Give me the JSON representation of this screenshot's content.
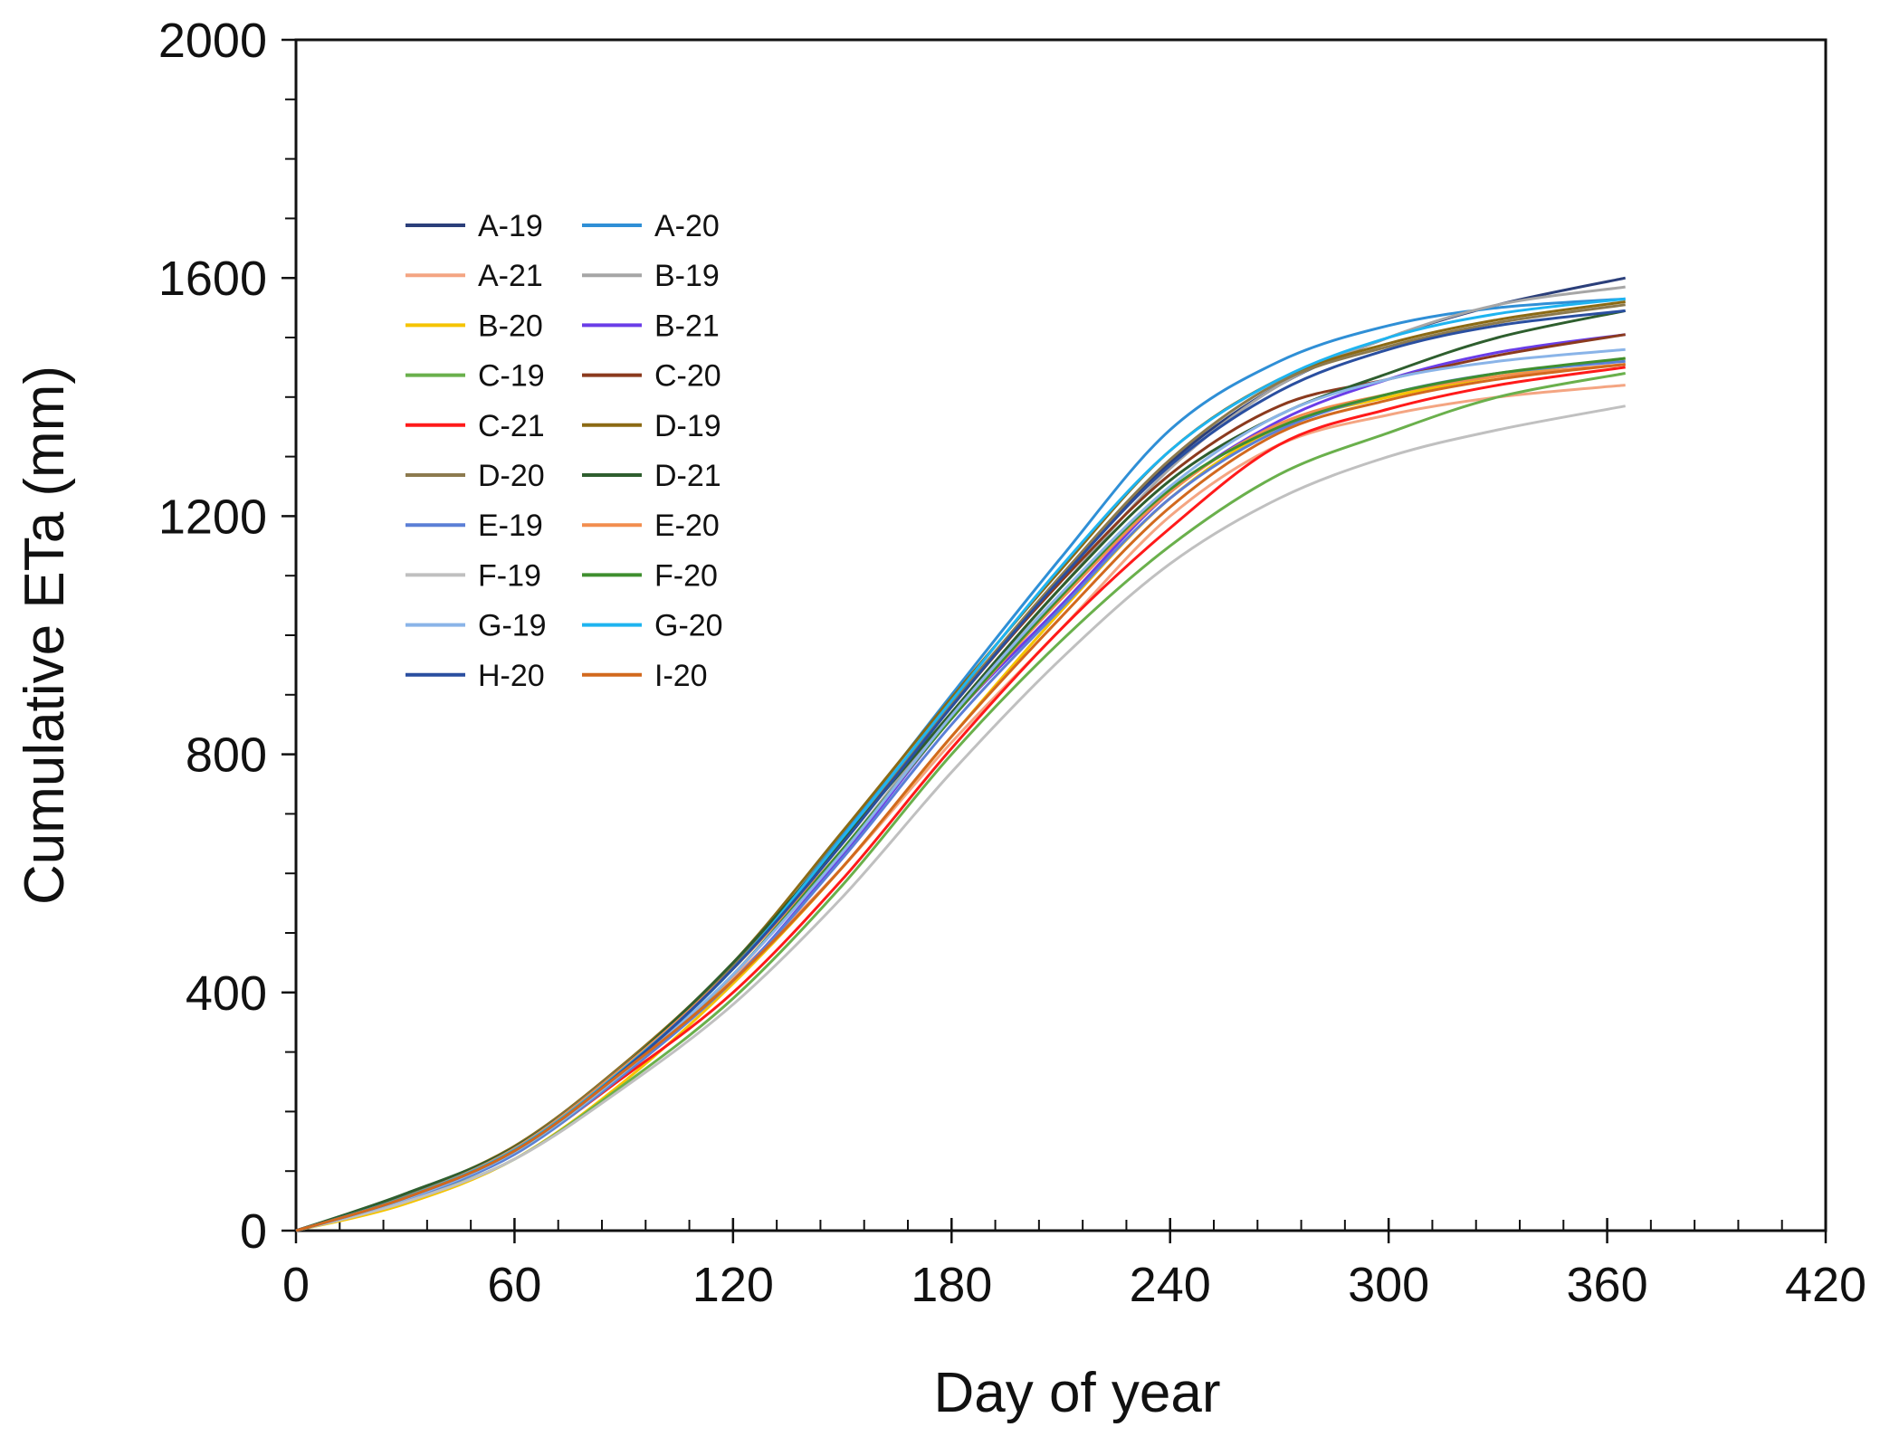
{
  "chart_data": {
    "type": "line",
    "title": "",
    "xlabel": "Day of year",
    "ylabel": "Cumulative ETa (mm)",
    "xlim": [
      0,
      420
    ],
    "ylim": [
      0,
      2000
    ],
    "xticks": [
      0,
      60,
      120,
      180,
      240,
      300,
      360,
      420
    ],
    "yticks": [
      0,
      400,
      800,
      1200,
      1600,
      2000
    ],
    "x_minor_step": 12,
    "y_minor_step": 100,
    "grid": false,
    "legend_position": "upper-left",
    "x": [
      0,
      30,
      60,
      90,
      120,
      150,
      180,
      210,
      240,
      270,
      300,
      330,
      365
    ],
    "series": [
      {
        "name": "A-19",
        "color": "#2b3f7a",
        "values": [
          0,
          60,
          140,
          275,
          440,
          655,
          880,
          1095,
          1290,
          1420,
          1500,
          1555,
          1600
        ]
      },
      {
        "name": "A-20",
        "color": "#2f8fd6",
        "values": [
          0,
          58,
          138,
          270,
          440,
          665,
          900,
          1130,
          1345,
          1460,
          1520,
          1550,
          1565
        ]
      },
      {
        "name": "A-21",
        "color": "#f4a582",
        "values": [
          0,
          55,
          135,
          268,
          425,
          610,
          820,
          1010,
          1200,
          1320,
          1370,
          1400,
          1420
        ]
      },
      {
        "name": "B-19",
        "color": "#a6a6a6",
        "values": [
          0,
          52,
          130,
          265,
          430,
          640,
          870,
          1080,
          1280,
          1420,
          1500,
          1555,
          1585
        ]
      },
      {
        "name": "B-20",
        "color": "#f5c400",
        "values": [
          0,
          45,
          120,
          250,
          415,
          610,
          830,
          1040,
          1230,
          1350,
          1400,
          1435,
          1465
        ]
      },
      {
        "name": "B-21",
        "color": "#6a3de8",
        "values": [
          0,
          55,
          132,
          266,
          420,
          630,
          860,
          1050,
          1240,
          1360,
          1430,
          1475,
          1505
        ]
      },
      {
        "name": "C-19",
        "color": "#6ab04c",
        "values": [
          0,
          50,
          120,
          245,
          390,
          580,
          800,
          990,
          1150,
          1270,
          1340,
          1400,
          1440
        ]
      },
      {
        "name": "C-20",
        "color": "#8b3a1e",
        "values": [
          0,
          56,
          136,
          272,
          440,
          650,
          880,
          1090,
          1270,
          1385,
          1430,
          1470,
          1505
        ]
      },
      {
        "name": "C-21",
        "color": "#ff1a1a",
        "values": [
          0,
          54,
          130,
          258,
          400,
          590,
          810,
          1010,
          1180,
          1320,
          1380,
          1420,
          1450
        ]
      },
      {
        "name": "D-19",
        "color": "#8b6a14",
        "values": [
          0,
          60,
          142,
          280,
          450,
          670,
          895,
          1110,
          1310,
          1430,
          1490,
          1530,
          1560
        ]
      },
      {
        "name": "D-20",
        "color": "#8c7a4e",
        "values": [
          0,
          58,
          140,
          278,
          445,
          660,
          885,
          1100,
          1295,
          1425,
          1485,
          1525,
          1555
        ]
      },
      {
        "name": "D-21",
        "color": "#2e5e2e",
        "values": [
          0,
          62,
          140,
          276,
          450,
          655,
          870,
          1080,
          1260,
          1370,
          1440,
          1500,
          1545
        ]
      },
      {
        "name": "E-19",
        "color": "#5b7fd6",
        "values": [
          0,
          52,
          128,
          262,
          420,
          625,
          850,
          1045,
          1230,
          1345,
          1405,
          1440,
          1460
        ]
      },
      {
        "name": "E-20",
        "color": "#f28e4f",
        "values": [
          0,
          56,
          138,
          275,
          440,
          640,
          860,
          1060,
          1240,
          1355,
          1405,
          1435,
          1455
        ]
      },
      {
        "name": "F-19",
        "color": "#c0c0c0",
        "values": [
          0,
          48,
          120,
          240,
          380,
          560,
          770,
          960,
          1120,
          1230,
          1300,
          1345,
          1385
        ]
      },
      {
        "name": "F-20",
        "color": "#3f8f2f",
        "values": [
          0,
          54,
          132,
          266,
          430,
          640,
          860,
          1065,
          1245,
          1350,
          1405,
          1440,
          1465
        ]
      },
      {
        "name": "G-19",
        "color": "#8ab4e8",
        "values": [
          0,
          53,
          132,
          266,
          430,
          635,
          865,
          1070,
          1250,
          1370,
          1430,
          1460,
          1480
        ]
      },
      {
        "name": "G-20",
        "color": "#1eb4f0",
        "values": [
          0,
          56,
          136,
          272,
          440,
          660,
          890,
          1115,
          1310,
          1430,
          1500,
          1540,
          1565
        ]
      },
      {
        "name": "H-20",
        "color": "#2a4fa0",
        "values": [
          0,
          55,
          134,
          270,
          440,
          650,
          880,
          1095,
          1285,
          1410,
          1480,
          1520,
          1545
        ]
      },
      {
        "name": "I-20",
        "color": "#d2691e",
        "values": [
          0,
          55,
          134,
          268,
          420,
          610,
          830,
          1030,
          1215,
          1340,
          1395,
          1430,
          1455
        ]
      }
    ]
  }
}
